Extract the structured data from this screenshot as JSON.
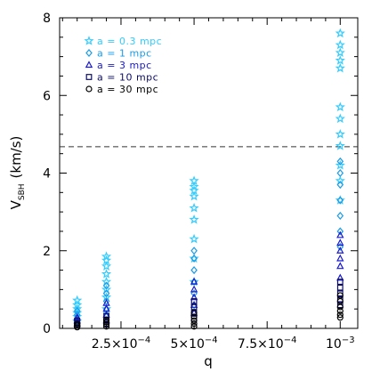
{
  "chart_data": {
    "type": "scatter",
    "title": "",
    "xlabel": "q",
    "ylabel": "V_SBH (km/s)",
    "ylabel_main": "V",
    "ylabel_sub": "SBH",
    "ylabel_unit": "(km/s)",
    "xlim": [
      4e-05,
      0.00106
    ],
    "ylim": [
      0,
      8
    ],
    "x_ticks": [
      {
        "value": 0.00025,
        "mantissa": "2.5",
        "exponent": "−4"
      },
      {
        "value": 0.0005,
        "mantissa": "5",
        "exponent": "−4"
      },
      {
        "value": 0.00075,
        "mantissa": "7.5",
        "exponent": "−4"
      },
      {
        "value": 0.001,
        "mantissa": "",
        "exponent": "−3"
      }
    ],
    "y_ticks": [
      0,
      2,
      4,
      6,
      8
    ],
    "y_tick_labels": [
      "0",
      "2",
      "4",
      "6",
      "8"
    ],
    "reference_line": {
      "y": 4.68,
      "style": "dashed"
    },
    "legend": {
      "position": "top-left"
    },
    "series": [
      {
        "name": "a = 0.3 mpc",
        "marker": "star",
        "color": "#33ccff",
        "points": [
          [
            0.0001,
            0.18
          ],
          [
            0.0001,
            0.3
          ],
          [
            0.0001,
            0.4
          ],
          [
            0.0001,
            0.5
          ],
          [
            0.0001,
            0.6
          ],
          [
            0.0001,
            0.72
          ],
          [
            0.0002,
            0.5
          ],
          [
            0.0002,
            0.8
          ],
          [
            0.0002,
            1.0
          ],
          [
            0.0002,
            1.2
          ],
          [
            0.0002,
            1.4
          ],
          [
            0.0002,
            1.6
          ],
          [
            0.0002,
            1.75
          ],
          [
            0.0002,
            1.85
          ],
          [
            0.0005,
            1.2
          ],
          [
            0.0005,
            1.8
          ],
          [
            0.0005,
            2.3
          ],
          [
            0.0005,
            2.8
          ],
          [
            0.0005,
            3.1
          ],
          [
            0.0005,
            3.4
          ],
          [
            0.0005,
            3.55
          ],
          [
            0.0005,
            3.65
          ],
          [
            0.0005,
            3.8
          ],
          [
            0.001,
            3.3
          ],
          [
            0.001,
            3.8
          ],
          [
            0.001,
            4.2
          ],
          [
            0.001,
            4.7
          ],
          [
            0.001,
            5.0
          ],
          [
            0.001,
            5.4
          ],
          [
            0.001,
            5.7
          ],
          [
            0.001,
            6.7
          ],
          [
            0.001,
            6.9
          ],
          [
            0.001,
            7.1
          ],
          [
            0.001,
            7.3
          ],
          [
            0.001,
            7.6
          ]
        ]
      },
      {
        "name": "a = 1 mpc",
        "marker": "diamond",
        "color": "#1a9be6",
        "points": [
          [
            0.0001,
            0.15
          ],
          [
            0.0001,
            0.25
          ],
          [
            0.0001,
            0.35
          ],
          [
            0.0001,
            0.45
          ],
          [
            0.0002,
            0.3
          ],
          [
            0.0002,
            0.5
          ],
          [
            0.0002,
            0.7
          ],
          [
            0.0002,
            0.9
          ],
          [
            0.0002,
            1.1
          ],
          [
            0.0005,
            0.6
          ],
          [
            0.0005,
            0.9
          ],
          [
            0.0005,
            1.2
          ],
          [
            0.0005,
            1.5
          ],
          [
            0.0005,
            1.8
          ],
          [
            0.0005,
            2.0
          ],
          [
            0.001,
            2.1
          ],
          [
            0.001,
            2.5
          ],
          [
            0.001,
            2.9
          ],
          [
            0.001,
            3.3
          ],
          [
            0.001,
            3.7
          ],
          [
            0.001,
            4.0
          ],
          [
            0.001,
            4.3
          ]
        ]
      },
      {
        "name": "a = 3 mpc",
        "marker": "triangle",
        "color": "#1a1acc",
        "points": [
          [
            0.0001,
            0.12
          ],
          [
            0.0001,
            0.2
          ],
          [
            0.0001,
            0.28
          ],
          [
            0.0002,
            0.2
          ],
          [
            0.0002,
            0.35
          ],
          [
            0.0002,
            0.5
          ],
          [
            0.0002,
            0.65
          ],
          [
            0.0005,
            0.4
          ],
          [
            0.0005,
            0.6
          ],
          [
            0.0005,
            0.8
          ],
          [
            0.0005,
            1.0
          ],
          [
            0.0005,
            1.2
          ],
          [
            0.001,
            1.3
          ],
          [
            0.001,
            1.6
          ],
          [
            0.001,
            1.8
          ],
          [
            0.001,
            2.0
          ],
          [
            0.001,
            2.2
          ],
          [
            0.001,
            2.4
          ]
        ]
      },
      {
        "name": "a = 10 mpc",
        "marker": "square",
        "color": "#0d0d66",
        "points": [
          [
            0.0001,
            0.08
          ],
          [
            0.0001,
            0.14
          ],
          [
            0.0001,
            0.2
          ],
          [
            0.0002,
            0.12
          ],
          [
            0.0002,
            0.22
          ],
          [
            0.0002,
            0.32
          ],
          [
            0.0005,
            0.25
          ],
          [
            0.0005,
            0.4
          ],
          [
            0.0005,
            0.55
          ],
          [
            0.0005,
            0.7
          ],
          [
            0.001,
            0.6
          ],
          [
            0.001,
            0.75
          ],
          [
            0.001,
            0.9
          ],
          [
            0.001,
            1.05
          ],
          [
            0.001,
            1.2
          ]
        ]
      },
      {
        "name": "a = 30 mpc",
        "marker": "circle",
        "color": "#000000",
        "points": [
          [
            0.0001,
            0.03
          ],
          [
            0.0001,
            0.07
          ],
          [
            0.0001,
            0.11
          ],
          [
            0.0002,
            0.05
          ],
          [
            0.0002,
            0.1
          ],
          [
            0.0002,
            0.16
          ],
          [
            0.0002,
            0.22
          ],
          [
            0.0005,
            0.05
          ],
          [
            0.0005,
            0.12
          ],
          [
            0.0005,
            0.2
          ],
          [
            0.0005,
            0.3
          ],
          [
            0.0005,
            0.4
          ],
          [
            0.001,
            0.28
          ],
          [
            0.001,
            0.35
          ],
          [
            0.001,
            0.45
          ],
          [
            0.001,
            0.55
          ],
          [
            0.001,
            0.7
          ],
          [
            0.001,
            0.85
          ]
        ]
      }
    ]
  }
}
